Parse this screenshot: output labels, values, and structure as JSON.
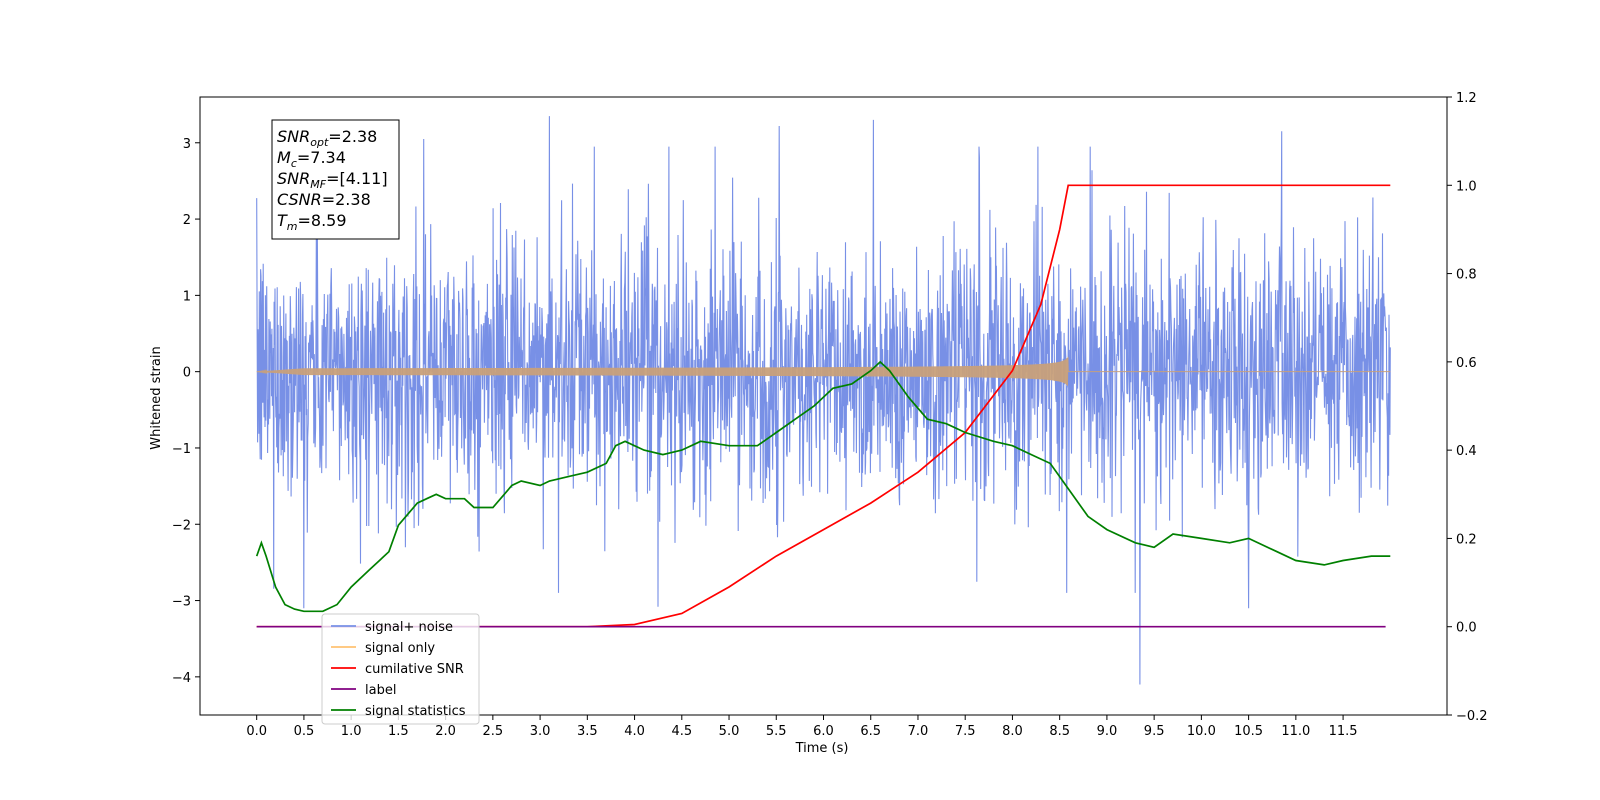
{
  "chart_data": {
    "type": "line",
    "xlabel": "Time (s)",
    "ylabel": "Whitened strain",
    "ylabel_right": "",
    "xlim": [
      -0.6,
      12.6
    ],
    "ylim": [
      -4.5,
      3.6
    ],
    "ylim_right": [
      -0.2,
      1.2
    ],
    "x_ticks": [
      "0.0",
      "0.5",
      "1.0",
      "1.5",
      "2.0",
      "2.5",
      "3.0",
      "3.5",
      "4.0",
      "4.5",
      "5.0",
      "5.5",
      "6.0",
      "6.5",
      "7.0",
      "7.5",
      "8.0",
      "8.5",
      "9.0",
      "9.5",
      "10.0",
      "10.5",
      "11.0",
      "11.5"
    ],
    "y_ticks": [
      "3",
      "2",
      "1",
      "0",
      "−1",
      "−2",
      "−3",
      "−4"
    ],
    "y_ticks_right": [
      "1.2",
      "1.0",
      "0.8",
      "0.6",
      "0.4",
      "0.2",
      "0.0",
      "−0.2"
    ],
    "grid": false,
    "legend_position": "lower-left",
    "annotation": {
      "lines": [
        {
          "base": "SNR",
          "sub": "opt",
          "value": "=2.38"
        },
        {
          "base": "M",
          "sub": "c",
          "value": "=7.34"
        },
        {
          "base": "SNR",
          "sub": "MF",
          "value": "=[4.11]"
        },
        {
          "base": "CSNR",
          "sub": "",
          "value": "=2.38"
        },
        {
          "base": "T",
          "sub": "m",
          "value": "=8.59"
        }
      ]
    },
    "series": [
      {
        "name": "signal+ noise",
        "color": "#7890e6",
        "axis": "left",
        "x_start": 0.0,
        "x_end": 12.0,
        "envelope_typical": [
          -1.6,
          1.6
        ],
        "peaks": [
          {
            "x": 3.1,
            "y": 3.35
          },
          {
            "x": 6.53,
            "y": 3.3
          },
          {
            "x": 5.53,
            "y": 3.22
          },
          {
            "x": 10.85,
            "y": 3.15
          },
          {
            "x": 1.77,
            "y": 3.05
          },
          {
            "x": 9.35,
            "y": -4.1
          },
          {
            "x": 4.25,
            "y": -3.08
          },
          {
            "x": 10.5,
            "y": -3.1
          },
          {
            "x": 0.5,
            "y": -3.1
          }
        ]
      },
      {
        "name": "signal only",
        "color": "#ffc373",
        "axis": "left",
        "x_start": 0.0,
        "x_end": 12.0,
        "chirp_end": 8.59,
        "amplitude_max": 0.2
      },
      {
        "name": "cumilative SNR",
        "color": "#ff0000",
        "axis": "right",
        "x": [
          0.0,
          3.5,
          4.0,
          4.5,
          5.0,
          5.5,
          6.0,
          6.5,
          7.0,
          7.5,
          8.0,
          8.3,
          8.5,
          8.59,
          12.0
        ],
        "values": [
          0.0,
          0.0,
          0.005,
          0.03,
          0.09,
          0.16,
          0.22,
          0.28,
          0.35,
          0.44,
          0.58,
          0.73,
          0.9,
          1.0,
          1.0
        ]
      },
      {
        "name": "label",
        "color": "#800080",
        "axis": "right",
        "x": [
          0.0,
          11.95
        ],
        "values": [
          0.0,
          0.0
        ]
      },
      {
        "name": "signal statistics",
        "color": "#008000",
        "axis": "right",
        "x": [
          0.0,
          0.05,
          0.1,
          0.2,
          0.3,
          0.4,
          0.5,
          0.7,
          0.85,
          1.0,
          1.2,
          1.3,
          1.4,
          1.5,
          1.7,
          1.8,
          1.9,
          2.0,
          2.2,
          2.3,
          2.5,
          2.7,
          2.8,
          3.0,
          3.1,
          3.3,
          3.5,
          3.7,
          3.8,
          3.9,
          4.1,
          4.3,
          4.5,
          4.7,
          5.0,
          5.3,
          5.5,
          5.7,
          5.9,
          6.1,
          6.3,
          6.5,
          6.6,
          6.7,
          6.9,
          7.1,
          7.3,
          7.5,
          7.8,
          8.0,
          8.2,
          8.4,
          8.6,
          8.8,
          9.0,
          9.3,
          9.5,
          9.7,
          10.0,
          10.3,
          10.5,
          10.8,
          11.0,
          11.3,
          11.5,
          11.8,
          12.0
        ],
        "values": [
          0.16,
          0.19,
          0.16,
          0.09,
          0.05,
          0.04,
          0.035,
          0.035,
          0.05,
          0.09,
          0.13,
          0.15,
          0.17,
          0.23,
          0.28,
          0.29,
          0.3,
          0.29,
          0.29,
          0.27,
          0.27,
          0.32,
          0.33,
          0.32,
          0.33,
          0.34,
          0.35,
          0.37,
          0.41,
          0.42,
          0.4,
          0.39,
          0.4,
          0.42,
          0.41,
          0.41,
          0.44,
          0.47,
          0.5,
          0.54,
          0.55,
          0.58,
          0.6,
          0.58,
          0.52,
          0.47,
          0.46,
          0.44,
          0.42,
          0.41,
          0.39,
          0.37,
          0.31,
          0.25,
          0.22,
          0.19,
          0.18,
          0.21,
          0.2,
          0.19,
          0.2,
          0.17,
          0.15,
          0.14,
          0.15,
          0.16,
          0.16
        ]
      }
    ]
  }
}
